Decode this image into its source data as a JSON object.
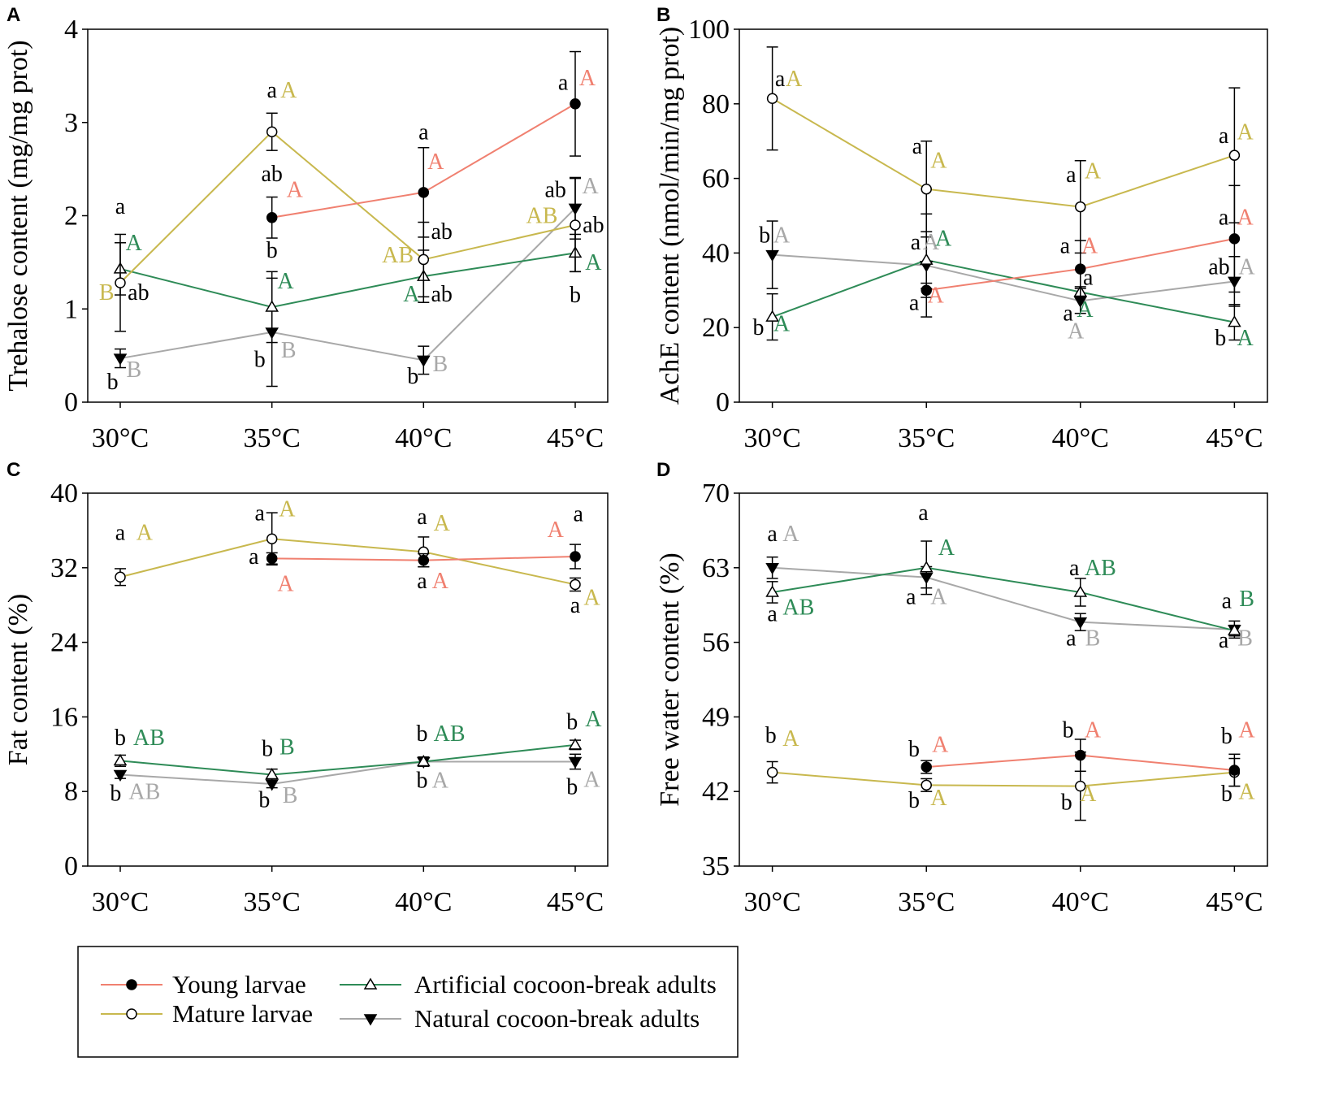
{
  "colors": {
    "young": "#f08070",
    "mature": "#c8b84e",
    "artificial": "#2e8b57",
    "natural": "#a8a8a8",
    "axis": "#000000"
  },
  "legend": {
    "items": [
      {
        "key": "young",
        "label": "Young larvae",
        "marker": "filled-circle"
      },
      {
        "key": "mature",
        "label": "Mature larvae",
        "marker": "open-circle"
      },
      {
        "key": "artificial",
        "label": "Artificial cocoon-break adults",
        "marker": "open-triangle"
      },
      {
        "key": "natural",
        "label": "Natural cocoon-break adults",
        "marker": "filled-inverted-triangle"
      }
    ]
  },
  "chart_data": [
    {
      "panel": "A",
      "type": "line",
      "ylabel": "Trehalose content (mg/mg prot)",
      "categories": [
        "30°C",
        "35°C",
        "40°C",
        "45°C"
      ],
      "ylim": [
        0,
        4
      ],
      "yticks": [
        "0",
        "1",
        "2",
        "3",
        "4"
      ],
      "series": [
        {
          "key": "young",
          "name": "Young larvae",
          "values": [
            null,
            1.98,
            2.25,
            3.2
          ],
          "err": [
            null,
            0.22,
            0.48,
            0.56
          ]
        },
        {
          "key": "mature",
          "name": "Mature larvae",
          "values": [
            1.28,
            2.9,
            1.53,
            1.9
          ],
          "err": [
            0.52,
            0.2,
            0.4,
            0.5
          ]
        },
        {
          "key": "artificial",
          "name": "Artificial cocoon-break adults",
          "values": [
            1.43,
            1.02,
            1.35,
            1.6
          ],
          "err": [
            0.28,
            0.38,
            0.28,
            0.2
          ]
        },
        {
          "key": "natural",
          "name": "Natural cocoon-break adults",
          "values": [
            0.47,
            0.75,
            0.45,
            2.08
          ],
          "err": [
            0.1,
            0.58,
            0.15,
            0.33
          ]
        }
      ],
      "annotations": [
        {
          "t": "a",
          "c": "axis",
          "x": 0,
          "y": 2.02
        },
        {
          "t": "A",
          "c": "artificial",
          "x": 0.09,
          "y": 1.63
        },
        {
          "t": "B",
          "c": "mature",
          "x": -0.09,
          "y": 1.1
        },
        {
          "t": "ab",
          "c": "axis",
          "x": 0.12,
          "y": 1.1
        },
        {
          "t": "b",
          "c": "axis",
          "x": -0.05,
          "y": 0.14
        },
        {
          "t": "B",
          "c": "natural",
          "x": 0.09,
          "y": 0.27
        },
        {
          "t": "a",
          "c": "axis",
          "x": 0,
          "y": 3.27
        },
        {
          "t": "A",
          "c": "mature",
          "x": 0.11,
          "y": 3.27
        },
        {
          "t": "ab",
          "c": "axis",
          "x": 0,
          "y": 2.37
        },
        {
          "t": "A",
          "c": "young",
          "x": 0.15,
          "y": 2.2
        },
        {
          "t": "b",
          "c": "axis",
          "x": 0,
          "y": 1.55
        },
        {
          "t": "A",
          "c": "artificial",
          "x": 0.09,
          "y": 1.22
        },
        {
          "t": "b",
          "c": "axis",
          "x": -0.08,
          "y": 0.38
        },
        {
          "t": "B",
          "c": "natural",
          "x": 0.11,
          "y": 0.48
        },
        {
          "t": "a",
          "c": "axis",
          "x": 0,
          "y": 2.82
        },
        {
          "t": "A",
          "c": "young",
          "x": 0.08,
          "y": 2.5
        },
        {
          "t": "ab",
          "c": "axis",
          "x": 0.12,
          "y": 1.75
        },
        {
          "t": "AB",
          "c": "mature",
          "x": -0.17,
          "y": 1.5
        },
        {
          "t": "A",
          "c": "artificial",
          "x": -0.08,
          "y": 1.08
        },
        {
          "t": "ab",
          "c": "axis",
          "x": 0.12,
          "y": 1.08
        },
        {
          "t": "b",
          "c": "axis",
          "x": -0.07,
          "y": 0.2
        },
        {
          "t": "B",
          "c": "natural",
          "x": 0.11,
          "y": 0.33
        },
        {
          "t": "a",
          "c": "axis",
          "x": -0.08,
          "y": 3.35
        },
        {
          "t": "A",
          "c": "young",
          "x": 0.08,
          "y": 3.4
        },
        {
          "t": "ab",
          "c": "axis",
          "x": -0.13,
          "y": 2.2
        },
        {
          "t": "A",
          "c": "natural",
          "x": 0.1,
          "y": 2.24
        },
        {
          "t": "AB",
          "c": "mature",
          "x": -0.22,
          "y": 1.92
        },
        {
          "t": "ab",
          "c": "axis",
          "x": 0.12,
          "y": 1.82
        },
        {
          "t": "A",
          "c": "artificial",
          "x": 0.12,
          "y": 1.42
        },
        {
          "t": "b",
          "c": "axis",
          "x": 0,
          "y": 1.07
        }
      ]
    },
    {
      "panel": "B",
      "type": "line",
      "ylabel": "AchE content (nmol/min/mg prot)",
      "categories": [
        "30°C",
        "35°C",
        "40°C",
        "45°C"
      ],
      "ylim": [
        0,
        105
      ],
      "yticks": [
        "0",
        "20",
        "40",
        "60",
        "80",
        "100"
      ],
      "series": [
        {
          "key": "young",
          "name": "Young larvae",
          "values": [
            null,
            31.5,
            37.5,
            46
          ],
          "err": [
            null,
            2,
            8,
            15
          ]
        },
        {
          "key": "mature",
          "name": "Mature larvae",
          "values": [
            85.5,
            60,
            55,
            69.5
          ],
          "err": [
            14.5,
            13.5,
            13,
            19
          ]
        },
        {
          "key": "artificial",
          "name": "Artificial cocoon-break adults",
          "values": [
            24,
            40,
            31,
            22.5
          ],
          "err": [
            6.5,
            8,
            1.5,
            5
          ]
        },
        {
          "key": "natural",
          "name": "Natural cocoon-break adults",
          "values": [
            41.5,
            38.5,
            28.5,
            34
          ],
          "err": [
            9.5,
            14.5,
            3.5,
            7
          ]
        }
      ],
      "annotations": [
        {
          "t": "a",
          "c": "axis",
          "x": 0.05,
          "y": 89
        },
        {
          "t": "A",
          "c": "mature",
          "x": 0.14,
          "y": 89
        },
        {
          "t": "b",
          "c": "axis",
          "x": -0.05,
          "y": 45
        },
        {
          "t": "A",
          "c": "natural",
          "x": 0.06,
          "y": 45
        },
        {
          "t": "b",
          "c": "axis",
          "x": -0.09,
          "y": 19
        },
        {
          "t": "A",
          "c": "artificial",
          "x": 0.06,
          "y": 20
        },
        {
          "t": "a",
          "c": "axis",
          "x": -0.06,
          "y": 70
        },
        {
          "t": "A",
          "c": "mature",
          "x": 0.08,
          "y": 66
        },
        {
          "t": "a",
          "c": "axis",
          "x": -0.07,
          "y": 43
        },
        {
          "t": "A",
          "c": "natural",
          "x": 0.03,
          "y": 43
        },
        {
          "t": "A",
          "c": "artificial",
          "x": 0.11,
          "y": 44
        },
        {
          "t": "a",
          "c": "axis",
          "x": -0.08,
          "y": 26
        },
        {
          "t": "A",
          "c": "young",
          "x": 0.06,
          "y": 28
        },
        {
          "t": "a",
          "c": "axis",
          "x": -0.06,
          "y": 62
        },
        {
          "t": "A",
          "c": "mature",
          "x": 0.08,
          "y": 63
        },
        {
          "t": "a",
          "c": "axis",
          "x": -0.1,
          "y": 42
        },
        {
          "t": "A",
          "c": "young",
          "x": 0.06,
          "y": 42
        },
        {
          "t": "a",
          "c": "axis",
          "x": 0.05,
          "y": 33
        },
        {
          "t": "a",
          "c": "axis",
          "x": -0.08,
          "y": 23
        },
        {
          "t": "A",
          "c": "artificial",
          "x": 0.03,
          "y": 24
        },
        {
          "t": "A",
          "c": "natural",
          "x": -0.03,
          "y": 18
        },
        {
          "t": "a",
          "c": "axis",
          "x": -0.07,
          "y": 73
        },
        {
          "t": "A",
          "c": "mature",
          "x": 0.07,
          "y": 74
        },
        {
          "t": "a",
          "c": "axis",
          "x": -0.07,
          "y": 50
        },
        {
          "t": "A",
          "c": "young",
          "x": 0.07,
          "y": 50
        },
        {
          "t": "ab",
          "c": "axis",
          "x": -0.1,
          "y": 36
        },
        {
          "t": "A",
          "c": "natural",
          "x": 0.08,
          "y": 36
        },
        {
          "t": "b",
          "c": "axis",
          "x": -0.09,
          "y": 16
        },
        {
          "t": "A",
          "c": "artificial",
          "x": 0.07,
          "y": 16
        }
      ]
    },
    {
      "panel": "C",
      "type": "line",
      "ylabel": "Fat content (%)",
      "categories": [
        "30°C",
        "35°C",
        "40°C",
        "45°C"
      ],
      "ylim": [
        0,
        40
      ],
      "yticks": [
        "0",
        "8",
        "16",
        "24",
        "32",
        "40"
      ],
      "series": [
        {
          "key": "young",
          "name": "Young larvae",
          "values": [
            null,
            33,
            32.8,
            33.2
          ],
          "err": [
            null,
            0.6,
            0.7,
            1.3
          ]
        },
        {
          "key": "mature",
          "name": "Mature larvae",
          "values": [
            31,
            35.1,
            33.7,
            30.2
          ],
          "err": [
            0.9,
            2.8,
            1.6,
            0.7
          ]
        },
        {
          "key": "artificial",
          "name": "Artificial cocoon-break adults",
          "values": [
            11.3,
            9.8,
            11.2,
            13
          ],
          "err": [
            0.6,
            0.6,
            0.5,
            0.5
          ]
        },
        {
          "key": "natural",
          "name": "Natural cocoon-break adults",
          "values": [
            9.8,
            8.8,
            11.2,
            11.2
          ],
          "err": [
            0.4,
            0.4,
            0.4,
            0.8
          ]
        }
      ],
      "annotations": [
        {
          "t": "a",
          "c": "axis",
          "x": 0,
          "y": 35
        },
        {
          "t": "A",
          "c": "mature",
          "x": 0.16,
          "y": 35
        },
        {
          "t": "b",
          "c": "axis",
          "x": 0,
          "y": 13
        },
        {
          "t": "AB",
          "c": "artificial",
          "x": 0.19,
          "y": 13
        },
        {
          "t": "b",
          "c": "axis",
          "x": -0.03,
          "y": 7
        },
        {
          "t": "AB",
          "c": "natural",
          "x": 0.16,
          "y": 7.2
        },
        {
          "t": "a",
          "c": "axis",
          "x": -0.08,
          "y": 37.1
        },
        {
          "t": "A",
          "c": "mature",
          "x": 0.1,
          "y": 37.5
        },
        {
          "t": "a",
          "c": "axis",
          "x": -0.12,
          "y": 32.4
        },
        {
          "t": "A",
          "c": "young",
          "x": 0.09,
          "y": 29.5
        },
        {
          "t": "b",
          "c": "axis",
          "x": -0.03,
          "y": 11.8
        },
        {
          "t": "B",
          "c": "artificial",
          "x": 0.1,
          "y": 12
        },
        {
          "t": "b",
          "c": "axis",
          "x": -0.05,
          "y": 6.3
        },
        {
          "t": "B",
          "c": "natural",
          "x": 0.12,
          "y": 6.8
        },
        {
          "t": "a",
          "c": "axis",
          "x": -0.01,
          "y": 36.7
        },
        {
          "t": "A",
          "c": "mature",
          "x": 0.12,
          "y": 36
        },
        {
          "t": "a",
          "c": "axis",
          "x": -0.01,
          "y": 29.8
        },
        {
          "t": "A",
          "c": "young",
          "x": 0.11,
          "y": 29.8
        },
        {
          "t": "b",
          "c": "axis",
          "x": -0.01,
          "y": 13.4
        },
        {
          "t": "AB",
          "c": "artificial",
          "x": 0.17,
          "y": 13.4
        },
        {
          "t": "b",
          "c": "axis",
          "x": -0.01,
          "y": 8.4
        },
        {
          "t": "A",
          "c": "natural",
          "x": 0.11,
          "y": 8.4
        },
        {
          "t": "A",
          "c": "young",
          "x": -0.13,
          "y": 35.3
        },
        {
          "t": "a",
          "c": "axis",
          "x": 0.02,
          "y": 37
        },
        {
          "t": "a",
          "c": "axis",
          "x": 0,
          "y": 27.2
        },
        {
          "t": "A",
          "c": "mature",
          "x": 0.11,
          "y": 28
        },
        {
          "t": "b",
          "c": "axis",
          "x": -0.02,
          "y": 14.7
        },
        {
          "t": "A",
          "c": "artificial",
          "x": 0.12,
          "y": 15
        },
        {
          "t": "b",
          "c": "axis",
          "x": -0.02,
          "y": 7.7
        },
        {
          "t": "A",
          "c": "natural",
          "x": 0.11,
          "y": 8.5
        }
      ]
    },
    {
      "panel": "D",
      "type": "line",
      "ylabel": "Free water content (%)",
      "categories": [
        "30°C",
        "35°C",
        "40°C",
        "45°C"
      ],
      "ylim": [
        35,
        70
      ],
      "yticks": [
        "35",
        "42",
        "49",
        "56",
        "63",
        "70"
      ],
      "series": [
        {
          "key": "young",
          "name": "Young larvae",
          "values": [
            null,
            44.3,
            45.4,
            44
          ],
          "err": [
            null,
            0.6,
            1.5,
            1.5
          ]
        },
        {
          "key": "mature",
          "name": "Mature larvae",
          "values": [
            43.8,
            42.6,
            42.5,
            43.8
          ],
          "err": [
            1,
            0.6,
            3.2,
            1.3
          ]
        },
        {
          "key": "artificial",
          "name": "Artificial cocoon-break adults",
          "values": [
            60.7,
            63,
            60.7,
            57.1
          ],
          "err": [
            1,
            2.5,
            1.3,
            0.5
          ]
        },
        {
          "key": "natural",
          "name": "Natural cocoon-break adults",
          "values": [
            63,
            62.1,
            57.9,
            57.2
          ],
          "err": [
            1,
            1,
            0.8,
            0.8
          ]
        }
      ],
      "annotations": [
        {
          "t": "a",
          "c": "axis",
          "x": 0,
          "y": 65.5
        },
        {
          "t": "A",
          "c": "natural",
          "x": 0.12,
          "y": 65.5
        },
        {
          "t": "a",
          "c": "axis",
          "x": 0,
          "y": 58
        },
        {
          "t": "AB",
          "c": "artificial",
          "x": 0.17,
          "y": 58.6
        },
        {
          "t": "b",
          "c": "axis",
          "x": -0.01,
          "y": 46.6
        },
        {
          "t": "A",
          "c": "mature",
          "x": 0.12,
          "y": 46.3
        },
        {
          "t": "a",
          "c": "axis",
          "x": -0.02,
          "y": 67.5
        },
        {
          "t": "A",
          "c": "artificial",
          "x": 0.13,
          "y": 64.2
        },
        {
          "t": "a",
          "c": "axis",
          "x": -0.1,
          "y": 59.6
        },
        {
          "t": "A",
          "c": "natural",
          "x": 0.08,
          "y": 59.6
        },
        {
          "t": "b",
          "c": "axis",
          "x": -0.08,
          "y": 45.3
        },
        {
          "t": "A",
          "c": "young",
          "x": 0.09,
          "y": 45.7
        },
        {
          "t": "b",
          "c": "axis",
          "x": -0.08,
          "y": 40.5
        },
        {
          "t": "A",
          "c": "mature",
          "x": 0.08,
          "y": 40.7
        },
        {
          "t": "a",
          "c": "axis",
          "x": -0.04,
          "y": 62.3
        },
        {
          "t": "AB",
          "c": "artificial",
          "x": 0.13,
          "y": 62.3
        },
        {
          "t": "a",
          "c": "axis",
          "x": -0.06,
          "y": 55.7
        },
        {
          "t": "B",
          "c": "natural",
          "x": 0.08,
          "y": 55.7
        },
        {
          "t": "b",
          "c": "axis",
          "x": -0.08,
          "y": 47.1
        },
        {
          "t": "A",
          "c": "young",
          "x": 0.08,
          "y": 47.1
        },
        {
          "t": "b",
          "c": "axis",
          "x": -0.09,
          "y": 40.3
        },
        {
          "t": "A",
          "c": "mature",
          "x": 0.05,
          "y": 41.1
        },
        {
          "t": "a",
          "c": "axis",
          "x": -0.05,
          "y": 59.2
        },
        {
          "t": "B",
          "c": "artificial",
          "x": 0.08,
          "y": 59.4
        },
        {
          "t": "a",
          "c": "axis",
          "x": -0.07,
          "y": 55.5
        },
        {
          "t": "B",
          "c": "natural",
          "x": 0.07,
          "y": 55.7
        },
        {
          "t": "b",
          "c": "axis",
          "x": -0.05,
          "y": 46.5
        },
        {
          "t": "A",
          "c": "young",
          "x": 0.08,
          "y": 47.1
        },
        {
          "t": "b",
          "c": "axis",
          "x": -0.05,
          "y": 41.1
        },
        {
          "t": "A",
          "c": "mature",
          "x": 0.08,
          "y": 41.3
        }
      ]
    }
  ]
}
